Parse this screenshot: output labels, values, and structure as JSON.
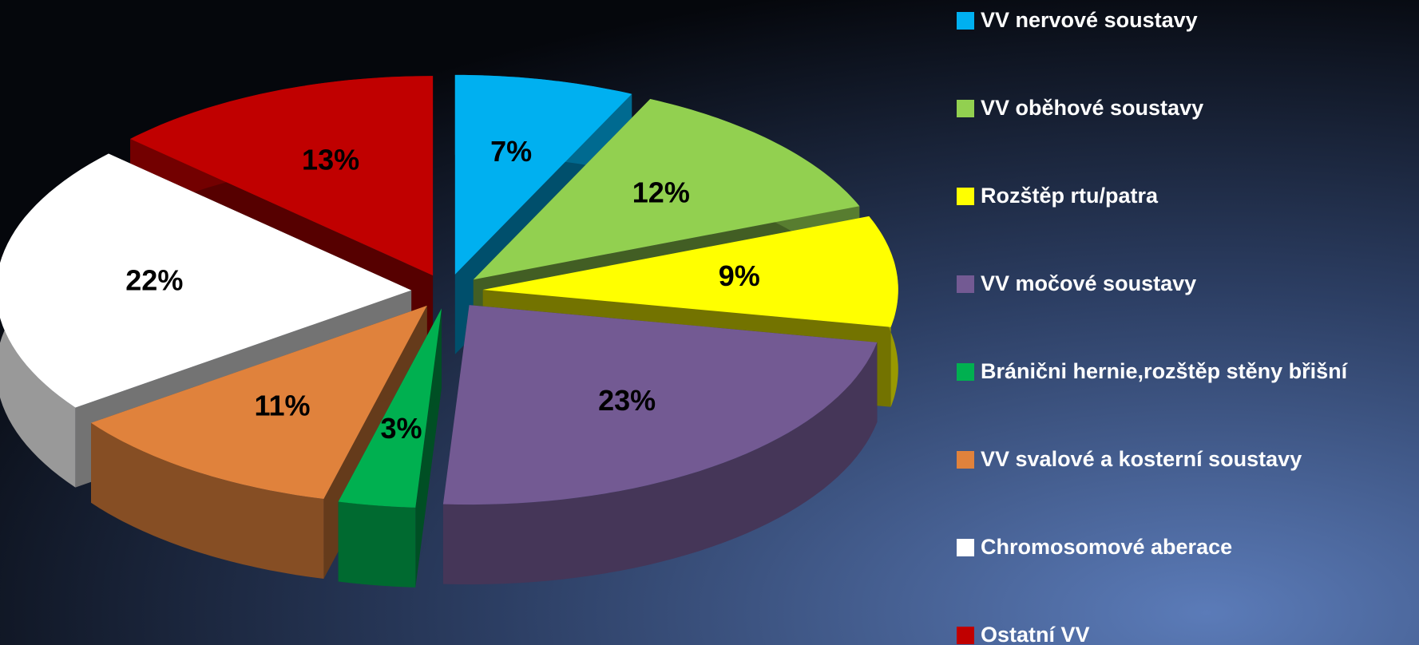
{
  "chart_data": {
    "type": "pie3d",
    "categories": [
      "VV nervové soustavy",
      "VV oběhové soustavy",
      "Rozštěp rtu/patra",
      "VV močové soustavy",
      "Bránični hernie,rozštěp stěny břišní",
      "VV svalové a kosterní soustavy",
      "Chromosomové aberace",
      "Ostatní VV"
    ],
    "values": [
      7,
      12,
      9,
      23,
      3,
      11,
      22,
      13
    ],
    "value_labels": [
      "7%",
      "12%",
      "9%",
      "23%",
      "3%",
      "11%",
      "22%",
      "13%"
    ],
    "colors": [
      "#00b0f0",
      "#92d050",
      "#ffff00",
      "#735a93",
      "#00b050",
      "#e0823c",
      "#ffffff",
      "#c00000"
    ],
    "legend": "right"
  }
}
